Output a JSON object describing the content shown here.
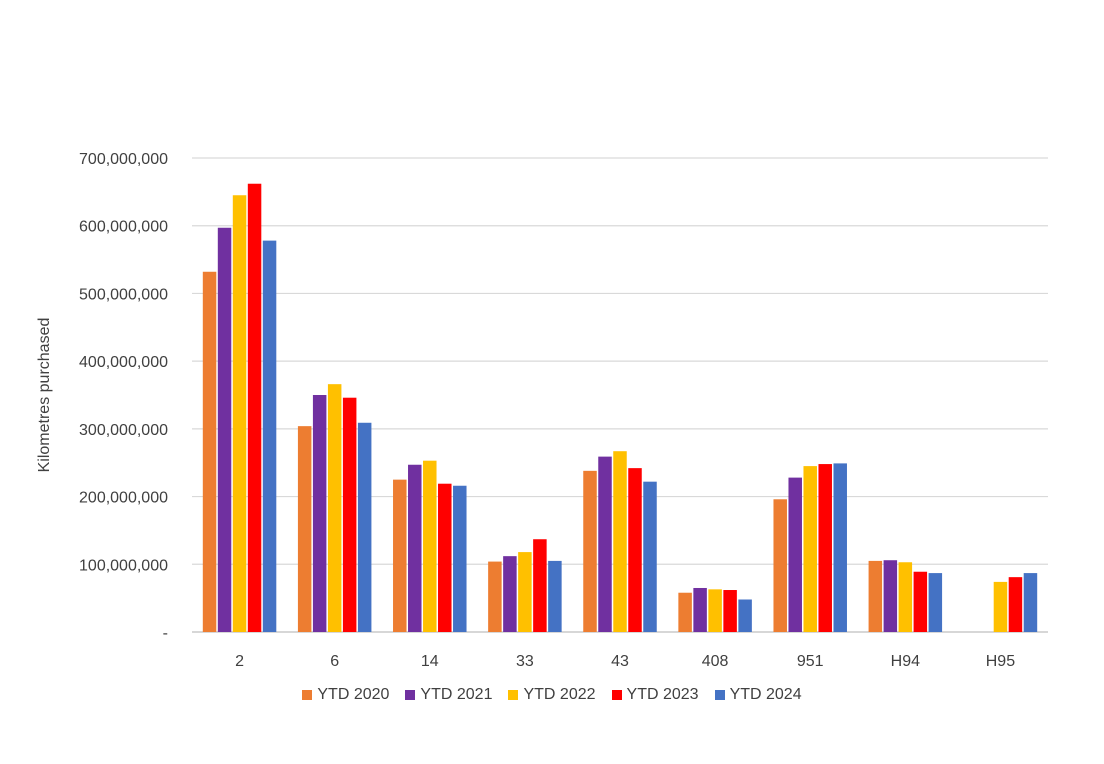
{
  "chart_data": {
    "type": "bar",
    "title": "",
    "xlabel": "",
    "ylabel": "Kilometres purchased",
    "ylim": [
      0,
      700000000
    ],
    "yticks": [
      0,
      100000000,
      200000000,
      300000000,
      400000000,
      500000000,
      600000000,
      700000000
    ],
    "ytick_labels": [
      "-",
      "100,000,000",
      "200,000,000",
      "300,000,000",
      "400,000,000",
      "500,000,000",
      "600,000,000",
      "700,000,000"
    ],
    "grid": true,
    "legend_position": "bottom",
    "categories": [
      "2",
      "6",
      "14",
      "33",
      "43",
      "408",
      "951",
      "H94",
      "H95"
    ],
    "series": [
      {
        "name": "YTD 2020",
        "color": "#ED7D31",
        "values": [
          532000000,
          304000000,
          225000000,
          104000000,
          238000000,
          58000000,
          196000000,
          105000000,
          null
        ]
      },
      {
        "name": "YTD 2021",
        "color": "#7030A0",
        "values": [
          597000000,
          350000000,
          247000000,
          112000000,
          259000000,
          65000000,
          228000000,
          106000000,
          null
        ]
      },
      {
        "name": "YTD 2022",
        "color": "#FFC000",
        "values": [
          645000000,
          366000000,
          253000000,
          118000000,
          267000000,
          63000000,
          245000000,
          103000000,
          74000000
        ]
      },
      {
        "name": "YTD 2023",
        "color": "#FF0000",
        "values": [
          662000000,
          346000000,
          219000000,
          137000000,
          242000000,
          62000000,
          248000000,
          89000000,
          81000000
        ]
      },
      {
        "name": "YTD 2024",
        "color": "#4472C4",
        "values": [
          578000000,
          309000000,
          216000000,
          105000000,
          222000000,
          48000000,
          249000000,
          87000000,
          87000000
        ]
      }
    ]
  }
}
